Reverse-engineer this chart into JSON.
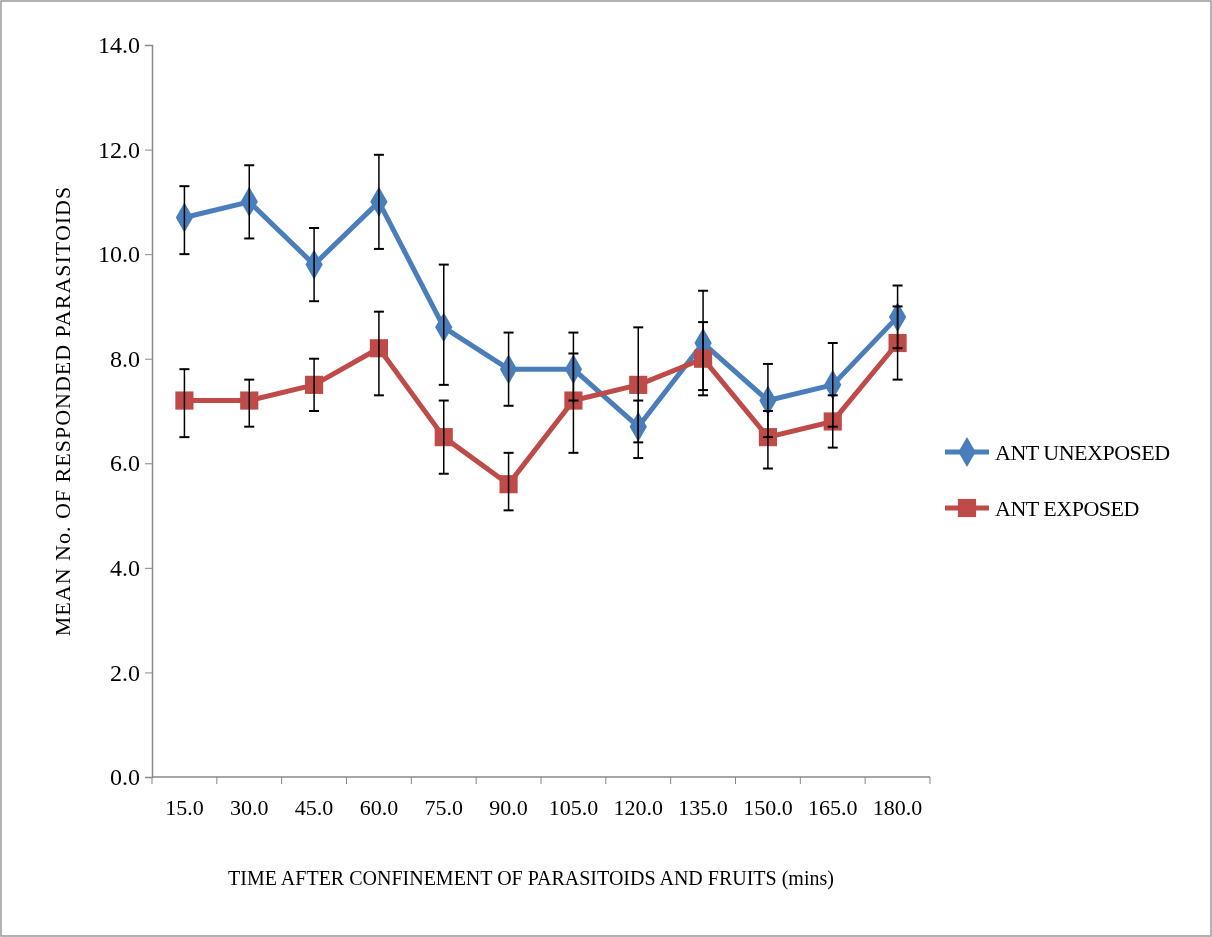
{
  "chart_data": {
    "type": "line",
    "xlabel": "TIME AFTER CONFINEMENT OF PARASITOIDS AND FRUITS (mins)",
    "ylabel": "MEAN No. OF RESPONDED PARASITOIDS",
    "categories": [
      "15.0",
      "30.0",
      "45.0",
      "60.0",
      "75.0",
      "90.0",
      "105.0",
      "120.0",
      "135.0",
      "150.0",
      "165.0",
      "180.0"
    ],
    "ylim": [
      0,
      14
    ],
    "yticks": [
      {
        "value": 0,
        "label": "0.0"
      },
      {
        "value": 2,
        "label": "2.0"
      },
      {
        "value": 4,
        "label": "4.0"
      },
      {
        "value": 6,
        "label": "6.0"
      },
      {
        "value": 8,
        "label": "8.0"
      },
      {
        "value": 10,
        "label": "10.0"
      },
      {
        "value": 12,
        "label": "12.0"
      },
      {
        "value": 14,
        "label": "14.0"
      }
    ],
    "grid": false,
    "legend": "right",
    "line_style": "solid",
    "series": [
      {
        "name": "ANT UNEXPOSED",
        "color": "#4a7ebb",
        "marker": "diamond",
        "values": [
          10.7,
          11.0,
          9.8,
          11.0,
          8.6,
          7.8,
          7.8,
          6.7,
          8.3,
          7.2,
          7.5,
          8.8
        ],
        "errors": [
          [
            10.0,
            11.3
          ],
          [
            10.3,
            11.7
          ],
          [
            9.1,
            10.5
          ],
          [
            10.1,
            11.9
          ],
          [
            7.5,
            9.8
          ],
          [
            7.1,
            8.5
          ],
          [
            7.2,
            8.5
          ],
          [
            6.1,
            7.2
          ],
          [
            7.4,
            9.3
          ],
          [
            6.5,
            7.9
          ],
          [
            6.7,
            8.3
          ],
          [
            8.2,
            9.4
          ]
        ]
      },
      {
        "name": "ANT EXPOSED",
        "color": "#be4b48",
        "marker": "square",
        "values": [
          7.2,
          7.2,
          7.5,
          8.2,
          6.5,
          5.6,
          7.2,
          7.5,
          8.0,
          6.5,
          6.8,
          8.3
        ],
        "errors": [
          [
            6.5,
            7.8
          ],
          [
            6.7,
            7.6
          ],
          [
            7.0,
            8.0
          ],
          [
            7.3,
            8.9
          ],
          [
            5.8,
            7.2
          ],
          [
            5.1,
            6.2
          ],
          [
            6.2,
            8.1
          ],
          [
            6.4,
            8.6
          ],
          [
            7.3,
            8.7
          ],
          [
            5.9,
            7.0
          ],
          [
            6.3,
            7.3
          ],
          [
            7.6,
            9.0
          ]
        ]
      }
    ]
  }
}
